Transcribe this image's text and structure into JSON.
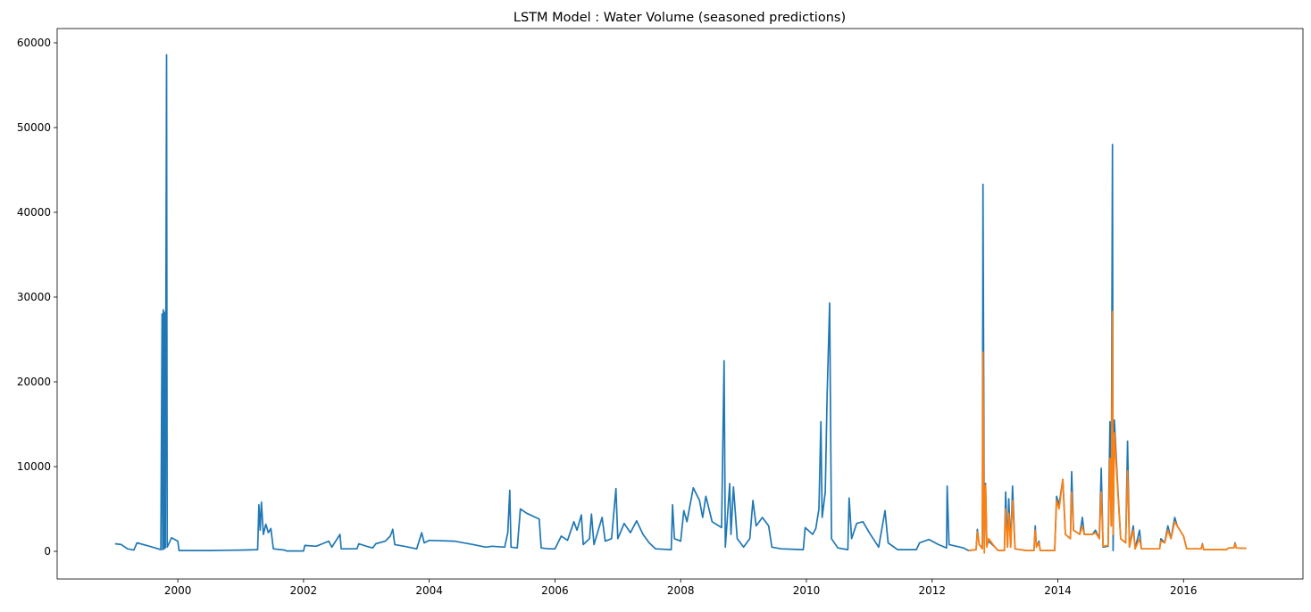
{
  "chart_data": {
    "type": "line",
    "title": "LSTM Model : Water Volume (seasoned predictions)",
    "xlabel": "",
    "ylabel": "",
    "xlim": [
      1998.08,
      2017.9
    ],
    "ylim": [
      -3260,
      61680
    ],
    "grid": false,
    "x_ticks": [
      "2000",
      "2002",
      "2004",
      "2006",
      "2008",
      "2010",
      "2012",
      "2014",
      "2016"
    ],
    "y_ticks": [
      "0",
      "10000",
      "20000",
      "30000",
      "40000",
      "50000",
      "60000"
    ],
    "series": [
      {
        "color": "#1f77b4",
        "points": [
          [
            1999.0,
            900
          ],
          [
            1999.1,
            800
          ],
          [
            1999.2,
            300
          ],
          [
            1999.3,
            150
          ],
          [
            1999.35,
            1000
          ],
          [
            1999.55,
            600
          ],
          [
            1999.73,
            200
          ],
          [
            1999.75,
            28000
          ],
          [
            1999.76,
            200
          ],
          [
            1999.77,
            28500
          ],
          [
            1999.78,
            300
          ],
          [
            1999.79,
            28200
          ],
          [
            1999.8,
            400
          ],
          [
            1999.82,
            58600
          ],
          [
            1999.83,
            500
          ],
          [
            1999.9,
            1600
          ],
          [
            2000.0,
            1200
          ],
          [
            2000.02,
            100
          ],
          [
            2000.5,
            100
          ],
          [
            2001.0,
            150
          ],
          [
            2001.27,
            200
          ],
          [
            2001.29,
            5500
          ],
          [
            2001.31,
            2500
          ],
          [
            2001.33,
            5800
          ],
          [
            2001.36,
            2000
          ],
          [
            2001.4,
            3200
          ],
          [
            2001.44,
            2200
          ],
          [
            2001.48,
            2700
          ],
          [
            2001.52,
            300
          ],
          [
            2001.7,
            150
          ],
          [
            2001.73,
            50
          ],
          [
            2002.0,
            50
          ],
          [
            2002.02,
            700
          ],
          [
            2002.2,
            600
          ],
          [
            2002.3,
            900
          ],
          [
            2002.4,
            1200
          ],
          [
            2002.45,
            500
          ],
          [
            2002.58,
            2000
          ],
          [
            2002.6,
            300
          ],
          [
            2002.85,
            300
          ],
          [
            2002.88,
            900
          ],
          [
            2003.0,
            600
          ],
          [
            2003.1,
            400
          ],
          [
            2003.15,
            900
          ],
          [
            2003.3,
            1200
          ],
          [
            2003.38,
            1800
          ],
          [
            2003.42,
            2600
          ],
          [
            2003.45,
            800
          ],
          [
            2003.6,
            600
          ],
          [
            2003.8,
            300
          ],
          [
            2003.88,
            2200
          ],
          [
            2003.92,
            1000
          ],
          [
            2004.0,
            1300
          ],
          [
            2004.4,
            1200
          ],
          [
            2004.7,
            800
          ],
          [
            2004.9,
            500
          ],
          [
            2005.0,
            600
          ],
          [
            2005.2,
            500
          ],
          [
            2005.25,
            2200
          ],
          [
            2005.28,
            7200
          ],
          [
            2005.3,
            500
          ],
          [
            2005.4,
            400
          ],
          [
            2005.45,
            5000
          ],
          [
            2005.55,
            4500
          ],
          [
            2005.75,
            3800
          ],
          [
            2005.78,
            400
          ],
          [
            2005.9,
            300
          ],
          [
            2006.0,
            300
          ],
          [
            2006.1,
            1800
          ],
          [
            2006.2,
            1300
          ],
          [
            2006.3,
            3500
          ],
          [
            2006.35,
            2500
          ],
          [
            2006.42,
            4300
          ],
          [
            2006.45,
            800
          ],
          [
            2006.55,
            1500
          ],
          [
            2006.58,
            4400
          ],
          [
            2006.62,
            800
          ],
          [
            2006.75,
            4000
          ],
          [
            2006.8,
            1200
          ],
          [
            2006.9,
            1500
          ],
          [
            2006.97,
            7400
          ],
          [
            2007.0,
            1500
          ],
          [
            2007.1,
            3300
          ],
          [
            2007.2,
            2200
          ],
          [
            2007.3,
            3600
          ],
          [
            2007.4,
            2000
          ],
          [
            2007.5,
            1000
          ],
          [
            2007.6,
            300
          ],
          [
            2007.85,
            200
          ],
          [
            2007.87,
            5500
          ],
          [
            2007.9,
            1500
          ],
          [
            2008.0,
            1200
          ],
          [
            2008.05,
            4800
          ],
          [
            2008.1,
            3500
          ],
          [
            2008.2,
            7500
          ],
          [
            2008.3,
            6000
          ],
          [
            2008.35,
            4000
          ],
          [
            2008.4,
            6500
          ],
          [
            2008.5,
            3500
          ],
          [
            2008.65,
            2800
          ],
          [
            2008.69,
            22500
          ],
          [
            2008.71,
            500
          ],
          [
            2008.78,
            8000
          ],
          [
            2008.8,
            2000
          ],
          [
            2008.84,
            7600
          ],
          [
            2008.9,
            1500
          ],
          [
            2009.0,
            500
          ],
          [
            2009.1,
            1500
          ],
          [
            2009.15,
            6000
          ],
          [
            2009.2,
            3000
          ],
          [
            2009.3,
            4000
          ],
          [
            2009.4,
            3000
          ],
          [
            2009.45,
            500
          ],
          [
            2009.6,
            300
          ],
          [
            2009.95,
            200
          ],
          [
            2009.98,
            2800
          ],
          [
            2010.1,
            2000
          ],
          [
            2010.15,
            2700
          ],
          [
            2010.2,
            5000
          ],
          [
            2010.23,
            15300
          ],
          [
            2010.25,
            4000
          ],
          [
            2010.3,
            7000
          ],
          [
            2010.33,
            18500
          ],
          [
            2010.37,
            29300
          ],
          [
            2010.4,
            1500
          ],
          [
            2010.5,
            400
          ],
          [
            2010.66,
            200
          ],
          [
            2010.68,
            6300
          ],
          [
            2010.72,
            1500
          ],
          [
            2010.8,
            3300
          ],
          [
            2010.9,
            3500
          ],
          [
            2011.0,
            2200
          ],
          [
            2011.15,
            500
          ],
          [
            2011.25,
            4800
          ],
          [
            2011.3,
            1000
          ],
          [
            2011.45,
            200
          ],
          [
            2011.75,
            200
          ],
          [
            2011.8,
            1000
          ],
          [
            2011.95,
            1400
          ],
          [
            2012.1,
            800
          ],
          [
            2012.23,
            400
          ],
          [
            2012.24,
            7700
          ],
          [
            2012.27,
            800
          ],
          [
            2012.5,
            400
          ],
          [
            2012.58,
            100
          ],
          [
            2012.7,
            200
          ],
          [
            2012.72,
            2600
          ],
          [
            2012.75,
            800
          ],
          [
            2012.8,
            400
          ],
          [
            2012.81,
            43300
          ],
          [
            2012.83,
            1000
          ],
          [
            2012.85,
            8000
          ],
          [
            2012.87,
            700
          ],
          [
            2012.9,
            1200
          ],
          [
            2013.0,
            500
          ],
          [
            2013.05,
            100
          ],
          [
            2013.15,
            100
          ],
          [
            2013.17,
            7000
          ],
          [
            2013.2,
            500
          ],
          [
            2013.22,
            6200
          ],
          [
            2013.25,
            500
          ],
          [
            2013.28,
            7700
          ],
          [
            2013.32,
            300
          ],
          [
            2013.5,
            100
          ],
          [
            2013.62,
            100
          ],
          [
            2013.64,
            3000
          ],
          [
            2013.66,
            500
          ],
          [
            2013.7,
            1200
          ],
          [
            2013.72,
            100
          ],
          [
            2013.95,
            100
          ],
          [
            2013.98,
            6500
          ],
          [
            2014.02,
            5500
          ],
          [
            2014.08,
            8500
          ],
          [
            2014.12,
            2000
          ],
          [
            2014.2,
            1500
          ],
          [
            2014.22,
            9400
          ],
          [
            2014.25,
            2500
          ],
          [
            2014.35,
            2000
          ],
          [
            2014.39,
            4000
          ],
          [
            2014.42,
            2000
          ],
          [
            2014.55,
            2000
          ],
          [
            2014.6,
            2500
          ],
          [
            2014.66,
            1500
          ],
          [
            2014.69,
            9800
          ],
          [
            2014.72,
            500
          ],
          [
            2014.8,
            600
          ],
          [
            2014.83,
            15300
          ],
          [
            2014.85,
            3000
          ],
          [
            2014.87,
            48000
          ],
          [
            2014.88,
            100
          ],
          [
            2014.9,
            15500
          ],
          [
            2014.95,
            8000
          ],
          [
            2015.0,
            1500
          ],
          [
            2015.08,
            1000
          ],
          [
            2015.11,
            13000
          ],
          [
            2015.14,
            500
          ],
          [
            2015.2,
            3000
          ],
          [
            2015.23,
            300
          ],
          [
            2015.3,
            2500
          ],
          [
            2015.33,
            300
          ],
          [
            2015.62,
            300
          ],
          [
            2015.64,
            1500
          ],
          [
            2015.7,
            1000
          ],
          [
            2015.75,
            3000
          ],
          [
            2015.8,
            1500
          ],
          [
            2015.86,
            4000
          ],
          [
            2015.9,
            3000
          ],
          [
            2016.0,
            1800
          ],
          [
            2016.05,
            300
          ],
          [
            2016.28,
            300
          ],
          [
            2016.3,
            900
          ],
          [
            2016.32,
            200
          ],
          [
            2016.68,
            200
          ],
          [
            2016.72,
            400
          ],
          [
            2016.8,
            400
          ],
          [
            2016.82,
            1000
          ],
          [
            2016.84,
            400
          ],
          [
            2017.0,
            350
          ]
        ]
      },
      {
        "color": "#ff7f0e",
        "points": [
          [
            2012.58,
            100
          ],
          [
            2012.7,
            200
          ],
          [
            2012.72,
            2300
          ],
          [
            2012.75,
            800
          ],
          [
            2012.8,
            300
          ],
          [
            2012.81,
            23500
          ],
          [
            2012.83,
            -200
          ],
          [
            2012.85,
            7800
          ],
          [
            2012.87,
            500
          ],
          [
            2012.9,
            1500
          ],
          [
            2013.0,
            500
          ],
          [
            2013.05,
            100
          ],
          [
            2013.15,
            100
          ],
          [
            2013.17,
            5000
          ],
          [
            2013.2,
            500
          ],
          [
            2013.22,
            4500
          ],
          [
            2013.25,
            500
          ],
          [
            2013.28,
            6000
          ],
          [
            2013.32,
            300
          ],
          [
            2013.5,
            100
          ],
          [
            2013.62,
            100
          ],
          [
            2013.64,
            2500
          ],
          [
            2013.66,
            500
          ],
          [
            2013.7,
            1000
          ],
          [
            2013.72,
            100
          ],
          [
            2013.95,
            100
          ],
          [
            2013.98,
            6000
          ],
          [
            2014.02,
            5000
          ],
          [
            2014.08,
            8500
          ],
          [
            2014.12,
            2000
          ],
          [
            2014.2,
            1500
          ],
          [
            2014.22,
            7000
          ],
          [
            2014.25,
            2500
          ],
          [
            2014.35,
            2000
          ],
          [
            2014.39,
            3000
          ],
          [
            2014.42,
            2000
          ],
          [
            2014.55,
            2000
          ],
          [
            2014.6,
            2200
          ],
          [
            2014.66,
            1500
          ],
          [
            2014.69,
            7000
          ],
          [
            2014.72,
            600
          ],
          [
            2014.8,
            700
          ],
          [
            2014.83,
            11000
          ],
          [
            2014.85,
            3000
          ],
          [
            2014.87,
            28300
          ],
          [
            2014.88,
            2000
          ],
          [
            2014.9,
            14000
          ],
          [
            2014.95,
            7500
          ],
          [
            2015.0,
            1500
          ],
          [
            2015.08,
            1000
          ],
          [
            2015.11,
            9500
          ],
          [
            2015.14,
            500
          ],
          [
            2015.2,
            2500
          ],
          [
            2015.23,
            300
          ],
          [
            2015.3,
            1500
          ],
          [
            2015.33,
            300
          ],
          [
            2015.62,
            300
          ],
          [
            2015.64,
            1200
          ],
          [
            2015.7,
            1000
          ],
          [
            2015.75,
            2500
          ],
          [
            2015.8,
            1500
          ],
          [
            2015.86,
            3500
          ],
          [
            2015.9,
            3000
          ],
          [
            2016.0,
            1800
          ],
          [
            2016.05,
            300
          ],
          [
            2016.28,
            300
          ],
          [
            2016.3,
            800
          ],
          [
            2016.32,
            200
          ],
          [
            2016.68,
            200
          ],
          [
            2016.72,
            400
          ],
          [
            2016.8,
            400
          ],
          [
            2016.82,
            900
          ],
          [
            2016.84,
            400
          ],
          [
            2017.0,
            350
          ]
        ]
      }
    ]
  }
}
